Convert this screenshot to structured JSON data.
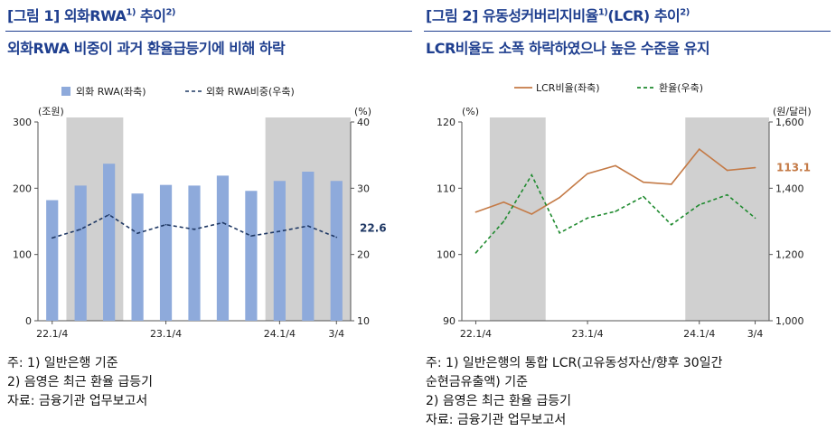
{
  "left": {
    "fig_label": "[그림 1] 외화RWA",
    "fig_sup": "1)",
    "fig_suffix": " 추이",
    "fig_sup2": "2)",
    "subtitle": "외화RWA 비중이 과거 환율급등기에 비해 하락",
    "notes": [
      "주:  1) 일반은행 기준",
      "        2) 음영은 최근 환율 급등기",
      "자료: 금융기관 업무보고서"
    ]
  },
  "right": {
    "fig_label": "[그림 2] 유동성커버리지비율",
    "fig_sup": "1)",
    "fig_suffix": "(LCR) 추이",
    "fig_sup2": "2)",
    "subtitle": "LCR비율도 소폭 하락하였으나 높은 수준을 유지",
    "notes": [
      "주: 1) 일반은행의 통합 LCR(고유동성자산/향후 30일간",
      "        순현금유출액) 기준",
      "      2) 음영은 최근 환율 급등기",
      "자료: 금융기관 업무보고서"
    ]
  },
  "chart_data": [
    {
      "type": "bar",
      "legend": [
        "외화 RWA(좌축)",
        "외화 RWA비중(우축)"
      ],
      "left_unit": "(조원)",
      "right_unit": "(%)",
      "x_ticks": [
        "22.1/4",
        "23.1/4",
        "24.1/4",
        "3/4"
      ],
      "left_ylim": [
        0,
        300
      ],
      "left_yticks": [
        0,
        100,
        200,
        300
      ],
      "right_ylim": [
        10,
        40
      ],
      "right_yticks": [
        10,
        20,
        30,
        40
      ],
      "shaded_ranges": [
        [
          1,
          2
        ],
        [
          8,
          10
        ]
      ],
      "series": [
        {
          "name": "외화 RWA(좌축)",
          "axis": "left",
          "kind": "bar",
          "color": "#8eaadb",
          "values": [
            182,
            204,
            237,
            192,
            205,
            204,
            219,
            196,
            211,
            225,
            211
          ]
        },
        {
          "name": "외화 RWA비중(우축)",
          "axis": "right",
          "kind": "dashed-line",
          "color": "#1f3864",
          "values": [
            22.5,
            23.8,
            26.0,
            23.2,
            24.5,
            23.8,
            24.8,
            22.8,
            23.5,
            24.3,
            22.6
          ]
        }
      ],
      "end_label": "22.6",
      "grid": false
    },
    {
      "type": "line",
      "legend": [
        "LCR비율(좌축)",
        "환율(우축)"
      ],
      "left_unit": "(%)",
      "right_unit": "(원/달러)",
      "x_ticks": [
        "22.1/4",
        "23.1/4",
        "24.1/4",
        "3/4"
      ],
      "left_ylim": [
        90,
        120
      ],
      "left_yticks": [
        90,
        100,
        110,
        120
      ],
      "right_ylim": [
        1000,
        1600
      ],
      "right_yticks": [
        "1,000",
        "1,200",
        "1,400",
        "1,600"
      ],
      "shaded_ranges": [
        [
          1,
          2
        ],
        [
          8,
          10
        ]
      ],
      "series": [
        {
          "name": "LCR비율(좌축)",
          "axis": "left",
          "kind": "line",
          "color": "#c47a46",
          "values": [
            106.4,
            107.9,
            106.1,
            108.6,
            112.2,
            113.4,
            110.9,
            110.6,
            115.9,
            112.7,
            113.1
          ]
        },
        {
          "name": "환율(우축)",
          "axis": "right",
          "kind": "dashed-line",
          "color": "#1e8a2e",
          "values": [
            1205,
            1300,
            1440,
            1265,
            1310,
            1330,
            1375,
            1290,
            1350,
            1380,
            1310
          ]
        }
      ],
      "end_label": "113.1",
      "grid": false
    }
  ]
}
